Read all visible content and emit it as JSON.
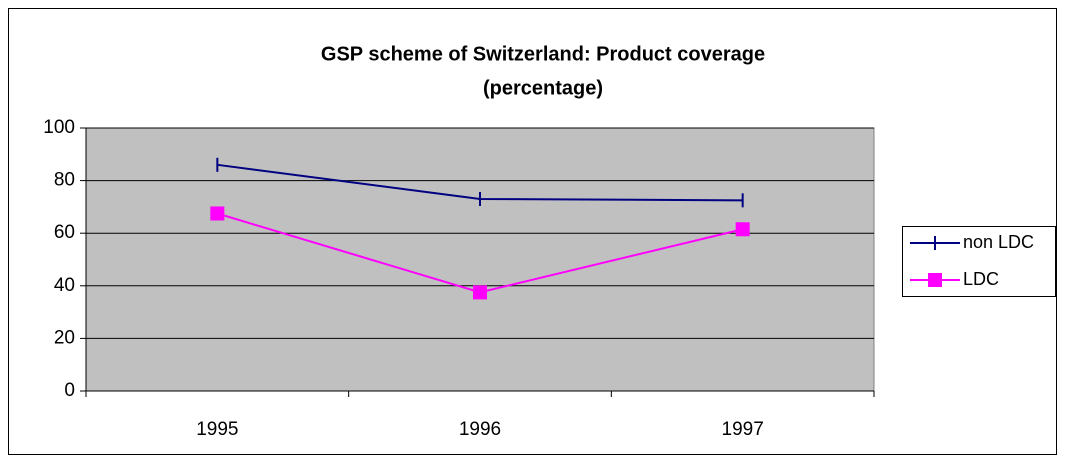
{
  "chart_data": {
    "type": "line",
    "title": [
      "GSP scheme of Switzerland: Product coverage",
      "(percentage)"
    ],
    "categories": [
      "1995",
      "1996",
      "1997"
    ],
    "series": [
      {
        "name": "non LDC",
        "color": "#000080",
        "marker": "tick",
        "values": [
          86,
          73,
          72.5
        ]
      },
      {
        "name": "LDC",
        "color": "#ff00ff",
        "marker": "square",
        "values": [
          67.5,
          37.5,
          61.5
        ]
      }
    ],
    "ylim": [
      0,
      100
    ],
    "yticks": [
      0,
      20,
      40,
      60,
      80,
      100
    ],
    "grid": true,
    "plot_background": "#c0c0c0",
    "legend": "right"
  }
}
